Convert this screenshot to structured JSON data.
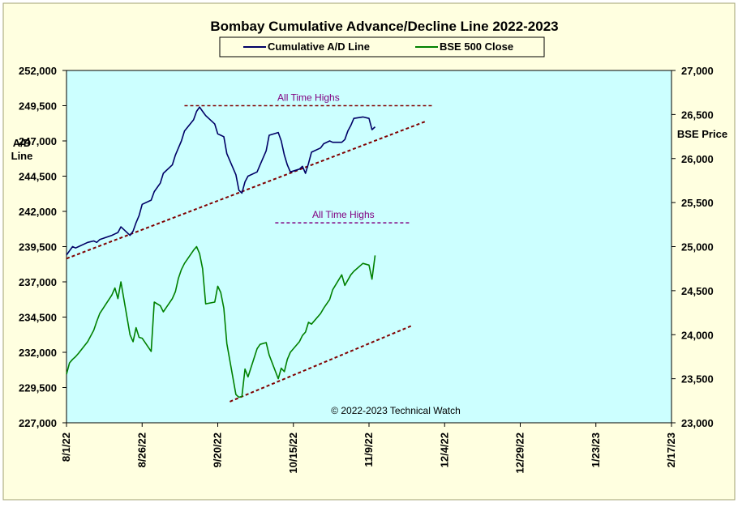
{
  "chart_data": {
    "type": "line",
    "title": "Bombay Cumulative Advance/Decline Line 2022-2023",
    "copyright": "© 2022-2023 Technical Watch",
    "legend": {
      "placement": "top-center",
      "items": [
        {
          "label": "Cumulative A/D Line",
          "color": "#000066"
        },
        {
          "label": "BSE 500 Close",
          "color": "#008000"
        }
      ]
    },
    "y_left": {
      "label": [
        "A/D",
        "Line"
      ],
      "min": 227000,
      "max": 252000,
      "ticks": [
        252000,
        249500,
        247000,
        244500,
        242000,
        239500,
        237000,
        234500,
        232000,
        229500,
        227000
      ],
      "tick_labels": [
        "252,000",
        "249,500",
        "247,000",
        "244,500",
        "242,000",
        "239,500",
        "237,000",
        "234,500",
        "232,000",
        "229,500",
        "227,000"
      ]
    },
    "y_right": {
      "label": "BSE Price",
      "min": 23000,
      "max": 27000,
      "ticks": [
        27000,
        26500,
        26000,
        25500,
        25000,
        24500,
        24000,
        23500,
        23000
      ],
      "tick_labels": [
        "27,000",
        "26,500",
        "26,000",
        "25,500",
        "25,000",
        "24,500",
        "24,000",
        "23,500",
        "23,000"
      ]
    },
    "x_axis": {
      "min": "2022-08-01",
      "max": "2023-02-17",
      "ticks": [
        "2022-08-01",
        "2022-08-26",
        "2022-09-20",
        "2022-10-15",
        "2022-11-09",
        "2022-12-04",
        "2022-12-29",
        "2023-01-23",
        "2023-02-17"
      ],
      "tick_labels": [
        "8/1/22",
        "8/26/22",
        "9/20/22",
        "10/15/22",
        "11/9/22",
        "12/4/22",
        "12/29/22",
        "1/23/23",
        "2/17/23"
      ]
    },
    "grid": false,
    "colors": {
      "plot_bg": "#ccffff",
      "outer_bg": "#ffffe0",
      "ad_line": "#000066",
      "bse_line": "#008000",
      "trendline": "#800000",
      "highs_line": "#800080",
      "highs_text": "#800080"
    },
    "series": [
      {
        "name": "Cumulative A/D Line",
        "axis": "left",
        "x": [
          "2022-08-01",
          "2022-08-02",
          "2022-08-03",
          "2022-08-04",
          "2022-08-05",
          "2022-08-08",
          "2022-08-10",
          "2022-08-11",
          "2022-08-12",
          "2022-08-16",
          "2022-08-17",
          "2022-08-18",
          "2022-08-19",
          "2022-08-22",
          "2022-08-23",
          "2022-08-24",
          "2022-08-25",
          "2022-08-26",
          "2022-08-29",
          "2022-08-30",
          "2022-09-01",
          "2022-09-02",
          "2022-09-05",
          "2022-09-06",
          "2022-09-07",
          "2022-09-08",
          "2022-09-09",
          "2022-09-12",
          "2022-09-13",
          "2022-09-14",
          "2022-09-15",
          "2022-09-16",
          "2022-09-19",
          "2022-09-20",
          "2022-09-21",
          "2022-09-22",
          "2022-09-23",
          "2022-09-26",
          "2022-09-27",
          "2022-09-28",
          "2022-09-29",
          "2022-09-30",
          "2022-10-03",
          "2022-10-04",
          "2022-10-06",
          "2022-10-07",
          "2022-10-10",
          "2022-10-11",
          "2022-10-12",
          "2022-10-13",
          "2022-10-14",
          "2022-10-17",
          "2022-10-18",
          "2022-10-19",
          "2022-10-20",
          "2022-10-21",
          "2022-10-24",
          "2022-10-25",
          "2022-10-27",
          "2022-10-28",
          "2022-10-31",
          "2022-11-01",
          "2022-11-02",
          "2022-11-03",
          "2022-11-04",
          "2022-11-07",
          "2022-11-09",
          "2022-11-10",
          "2022-11-11"
        ],
        "values": [
          238900,
          239200,
          239500,
          239400,
          239500,
          239800,
          239900,
          239800,
          240000,
          240300,
          240400,
          240500,
          240900,
          240300,
          240600,
          241200,
          241700,
          242500,
          242800,
          243400,
          244000,
          244700,
          245300,
          246000,
          246500,
          247000,
          247700,
          248500,
          249100,
          249400,
          249100,
          248800,
          248200,
          247500,
          247400,
          247300,
          246100,
          244600,
          243500,
          243300,
          244100,
          244500,
          244800,
          245300,
          246300,
          247400,
          247600,
          247000,
          246000,
          245300,
          244800,
          245000,
          245200,
          244700,
          245400,
          246200,
          246500,
          246800,
          247000,
          246900,
          246900,
          247100,
          247700,
          248100,
          248600,
          248700,
          248600,
          247800,
          248000
        ]
      },
      {
        "name": "BSE 500 Close",
        "axis": "right",
        "x": [
          "2022-08-01",
          "2022-08-02",
          "2022-08-03",
          "2022-08-04",
          "2022-08-05",
          "2022-08-08",
          "2022-08-10",
          "2022-08-11",
          "2022-08-12",
          "2022-08-16",
          "2022-08-17",
          "2022-08-18",
          "2022-08-19",
          "2022-08-22",
          "2022-08-23",
          "2022-08-24",
          "2022-08-25",
          "2022-08-26",
          "2022-08-29",
          "2022-08-30",
          "2022-09-01",
          "2022-09-02",
          "2022-09-05",
          "2022-09-06",
          "2022-09-07",
          "2022-09-08",
          "2022-09-09",
          "2022-09-12",
          "2022-09-13",
          "2022-09-14",
          "2022-09-15",
          "2022-09-16",
          "2022-09-19",
          "2022-09-20",
          "2022-09-21",
          "2022-09-22",
          "2022-09-23",
          "2022-09-26",
          "2022-09-27",
          "2022-09-28",
          "2022-09-29",
          "2022-09-30",
          "2022-10-03",
          "2022-10-04",
          "2022-10-06",
          "2022-10-07",
          "2022-10-10",
          "2022-10-11",
          "2022-10-12",
          "2022-10-13",
          "2022-10-14",
          "2022-10-17",
          "2022-10-18",
          "2022-10-19",
          "2022-10-20",
          "2022-10-21",
          "2022-10-24",
          "2022-10-25",
          "2022-10-27",
          "2022-10-28",
          "2022-10-31",
          "2022-11-01",
          "2022-11-02",
          "2022-11-03",
          "2022-11-04",
          "2022-11-07",
          "2022-11-09",
          "2022-11-10",
          "2022-11-11"
        ],
        "values": [
          23550,
          23680,
          23720,
          23750,
          23790,
          23920,
          24050,
          24150,
          24240,
          24450,
          24530,
          24410,
          24600,
          24000,
          23920,
          24080,
          23970,
          23960,
          23810,
          24370,
          24330,
          24260,
          24410,
          24490,
          24640,
          24740,
          24810,
          24960,
          25000,
          24920,
          24750,
          24350,
          24370,
          24550,
          24480,
          24300,
          23900,
          23320,
          23290,
          23300,
          23610,
          23520,
          23840,
          23890,
          23910,
          23770,
          23500,
          23620,
          23580,
          23720,
          23800,
          23920,
          23990,
          24030,
          24140,
          24120,
          24240,
          24300,
          24400,
          24510,
          24680,
          24560,
          24620,
          24680,
          24720,
          24810,
          24790,
          24630,
          24900
        ]
      }
    ],
    "trendlines": [
      {
        "axis": "left",
        "style": "dashed",
        "x": [
          "2022-08-01",
          "2022-11-28"
        ],
        "y": [
          238650,
          248410
        ]
      },
      {
        "axis": "right",
        "style": "dashed",
        "x": [
          "2022-09-24",
          "2022-11-23"
        ],
        "y": [
          23240,
          24100
        ]
      }
    ],
    "annotations": [
      {
        "text": "All Time Highs",
        "axis": "left",
        "x_start": "2022-09-09",
        "x_end": "2022-11-30",
        "y": 249500
      },
      {
        "text": "All Time Highs",
        "axis": "right",
        "x_start": "2022-10-09",
        "x_end": "2022-11-23",
        "y": 25270
      }
    ]
  }
}
